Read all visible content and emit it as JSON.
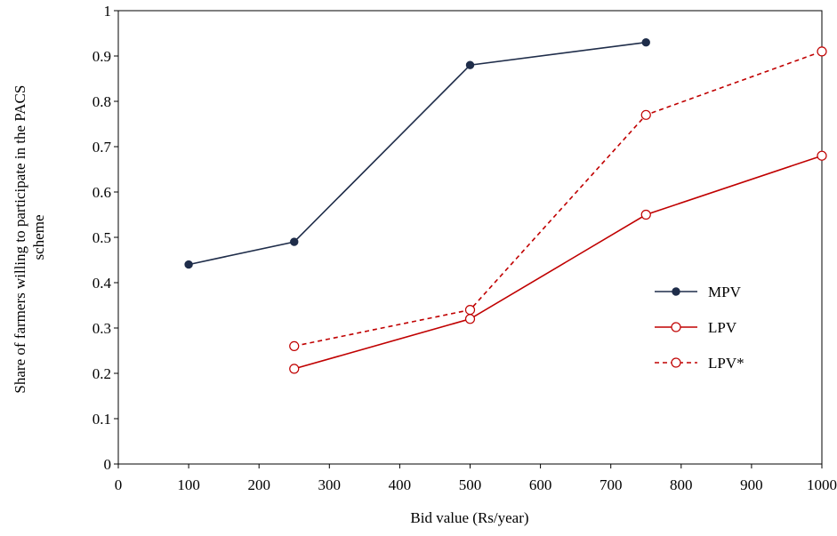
{
  "chart_data": {
    "type": "line",
    "xlabel": "Bid value (Rs/year)",
    "ylabel_lines": [
      "Share of  farmers willing to participate in the PACS",
      "scheme"
    ],
    "xlim": [
      0,
      1000
    ],
    "ylim": [
      0,
      1
    ],
    "xticks": [
      0,
      100,
      200,
      300,
      400,
      500,
      600,
      700,
      800,
      900,
      1000
    ],
    "yticks": [
      0,
      0.1,
      0.2,
      0.3,
      0.4,
      0.5,
      0.6,
      0.7,
      0.8,
      0.9,
      1
    ],
    "grid": false,
    "legend_position": "right",
    "series": [
      {
        "name": "MPV",
        "color": "#1f2d4a",
        "marker": "filled-circle",
        "line_style": "solid",
        "x": [
          100,
          250,
          500,
          750
        ],
        "y": [
          0.44,
          0.49,
          0.88,
          0.93
        ]
      },
      {
        "name": "LPV",
        "color": "#c00000",
        "marker": "open-circle",
        "line_style": "solid",
        "x": [
          250,
          500,
          750,
          1000
        ],
        "y": [
          0.21,
          0.32,
          0.55,
          0.68
        ]
      },
      {
        "name": "LPV*",
        "color": "#c00000",
        "marker": "open-circle",
        "line_style": "dashed",
        "x": [
          250,
          500,
          750,
          1000
        ],
        "y": [
          0.26,
          0.34,
          0.77,
          0.91
        ]
      }
    ]
  }
}
